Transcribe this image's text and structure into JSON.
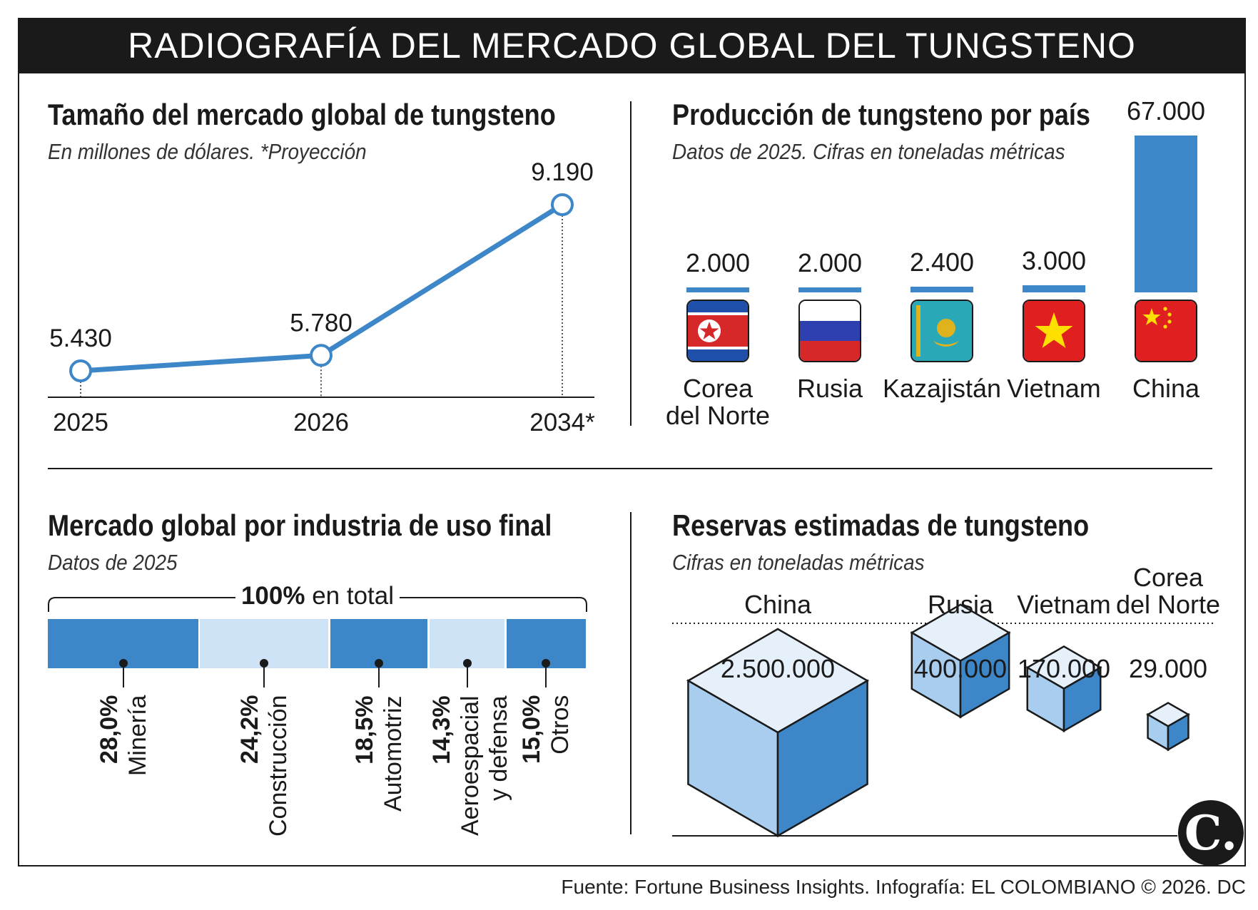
{
  "header": {
    "title": "RADIOGRAFÍA DEL MERCADO GLOBAL DEL TUNGSTENO"
  },
  "panels": {
    "market": {
      "title": "Tamaño del mercado global de tungsteno",
      "subtitle": "En millones de dólares. *Proyección"
    },
    "production": {
      "title": "Producción de tungsteno por país",
      "subtitle": "Datos de 2025. Cifras en toneladas métricas"
    },
    "industry": {
      "title": "Mercado global por industria de uso final",
      "subtitle": "Datos de 2025",
      "total_bold": "100%",
      "total_rest": " en total"
    },
    "reserves": {
      "title": "Reservas estimadas de tungsteno",
      "subtitle": "Cifras en toneladas métricas"
    }
  },
  "footer": {
    "source": "Fuente: Fortune Business Insights. Infografía: EL COLOMBIANO © 2026. DC",
    "logo": "C."
  },
  "colors": {
    "blue": "#3d87c8",
    "light_blue": "#cfe3f6",
    "cube_top": "#e6f0fb",
    "cube_left": "#a9cdee",
    "cube_right": "#3d87c8",
    "dark": "#1a1a1a"
  },
  "chart_data": [
    {
      "type": "line",
      "x": [
        "2025",
        "2026",
        "2034*"
      ],
      "values": [
        5430,
        5780,
        9190
      ],
      "labels": [
        "5.430",
        "5.780",
        "9.190"
      ]
    },
    {
      "type": "bar",
      "categories": [
        {
          "line1": "Corea",
          "line2": "del Norte",
          "flag": "north-korea-flag"
        },
        {
          "line1": "Rusia",
          "line2": "",
          "flag": "russia-flag"
        },
        {
          "line1": "Kazajistán",
          "line2": "",
          "flag": "kazakhstan-flag"
        },
        {
          "line1": "Vietnam",
          "line2": "",
          "flag": "vietnam-flag"
        },
        {
          "line1": "China",
          "line2": "",
          "flag": "china-flag"
        }
      ],
      "values": [
        2000,
        2000,
        2400,
        3000,
        67000
      ],
      "labels": [
        "2.000",
        "2.000",
        "2.400",
        "3.000",
        "67.000"
      ]
    },
    {
      "type": "bar",
      "orientation": "stacked-horizontal",
      "segments": [
        {
          "name": "Minería",
          "name2": "",
          "value": 28.0,
          "label": "28,0%",
          "shade": "dark"
        },
        {
          "name": "Construcción",
          "name2": "",
          "value": 24.2,
          "label": "24,2%",
          "shade": "light"
        },
        {
          "name": "Automotriz",
          "name2": "",
          "value": 18.5,
          "label": "18,5%",
          "shade": "dark"
        },
        {
          "name": "Aeroespacial",
          "name2": "y defensa",
          "value": 14.3,
          "label": "14,3%",
          "shade": "light"
        },
        {
          "name": "Otros",
          "name2": "",
          "value": 15.0,
          "label": "15,0%",
          "shade": "dark"
        }
      ]
    },
    {
      "type": "bar",
      "shape": "cube",
      "categories": [
        {
          "line1": "China",
          "line2": ""
        },
        {
          "line1": "Rusia",
          "line2": ""
        },
        {
          "line1": "Vietnam",
          "line2": ""
        },
        {
          "line1": "Corea",
          "line2": "del Norte"
        }
      ],
      "values": [
        2500000,
        400000,
        170000,
        29000
      ],
      "labels": [
        "2.500.000",
        "400.000",
        "170.000",
        "29.000"
      ]
    }
  ]
}
